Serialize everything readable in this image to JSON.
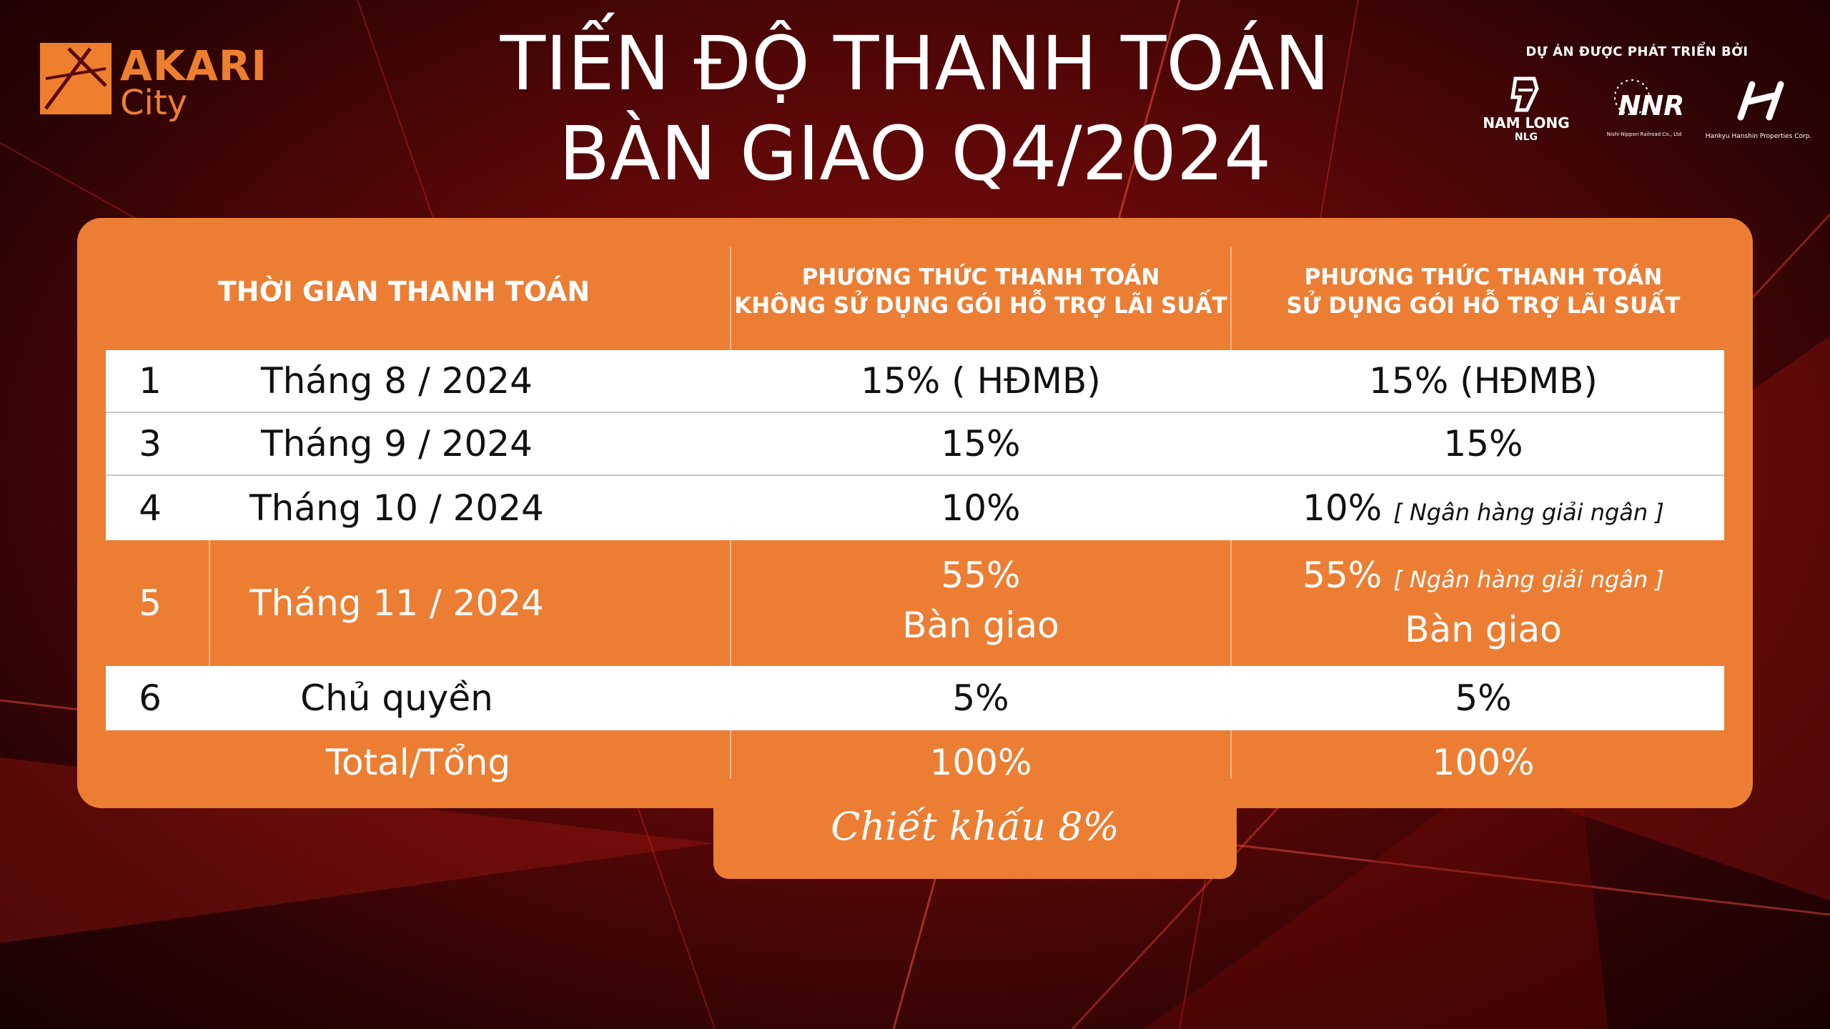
{
  "brand": {
    "line1": "AKARI",
    "line2": "City"
  },
  "title": {
    "line1": "TIẾN ĐỘ THANH TOÁN",
    "line2": "BÀN GIAO Q4/2024"
  },
  "partners": {
    "caption": "DỰ ÁN ĐƯỢC PHÁT TRIỂN BỞI",
    "items": [
      {
        "name": "NAM LONG",
        "sub": "NLG"
      },
      {
        "name": "NNR",
        "sub": "Nishi-Nippon Railroad Co., Ltd"
      },
      {
        "name": "",
        "sub": "Hankyu Hanshin Properties Corp."
      }
    ]
  },
  "table": {
    "headers": {
      "time": "THỜI GIAN THANH TOÁN",
      "p1_line1": "PHƯƠNG THỨC THANH TOÁN",
      "p1_line2": "KHÔNG SỬ DỤNG GÓI HỖ TRỢ LÃI SUẤT",
      "p2_line1": "PHƯƠNG THỨC THANH TOÁN",
      "p2_line2": "SỬ DỤNG GÓI HỖ TRỢ LÃI SUẤT"
    },
    "rows": [
      {
        "num": "1",
        "time": "Tháng 8 / 2024",
        "p1": "15% ( HĐMB)",
        "p2": "15% (HĐMB)",
        "p2_note": "",
        "p1_line2": "",
        "p2_line2": ""
      },
      {
        "num": "3",
        "time": "Tháng 9 / 2024",
        "p1": "15%",
        "p2": "15%",
        "p2_note": "",
        "p1_line2": "",
        "p2_line2": ""
      },
      {
        "num": "4",
        "time": "Tháng 10 / 2024",
        "p1": "10%",
        "p2": "10%",
        "p2_note": "[ Ngân hàng giải ngân ]",
        "p1_line2": "",
        "p2_line2": ""
      },
      {
        "num": "5",
        "time": "Tháng 11 / 2024",
        "p1": "55%",
        "p2": "55%",
        "p2_note": "[ Ngân hàng giải ngân ]",
        "p1_line2": "Bàn giao",
        "p2_line2": "Bàn giao"
      },
      {
        "num": "6",
        "time": "Chủ quyền",
        "p1": "5%",
        "p2": "5%",
        "p2_note": "",
        "p1_line2": "",
        "p2_line2": ""
      }
    ],
    "total": {
      "label": "Total/Tổng",
      "p1": "100%",
      "p2": "100%"
    },
    "discount": "Chiết khấu 8%"
  },
  "colors": {
    "panel": "#ec7e34",
    "background": "#5a0707",
    "text_dark": "#111111"
  }
}
